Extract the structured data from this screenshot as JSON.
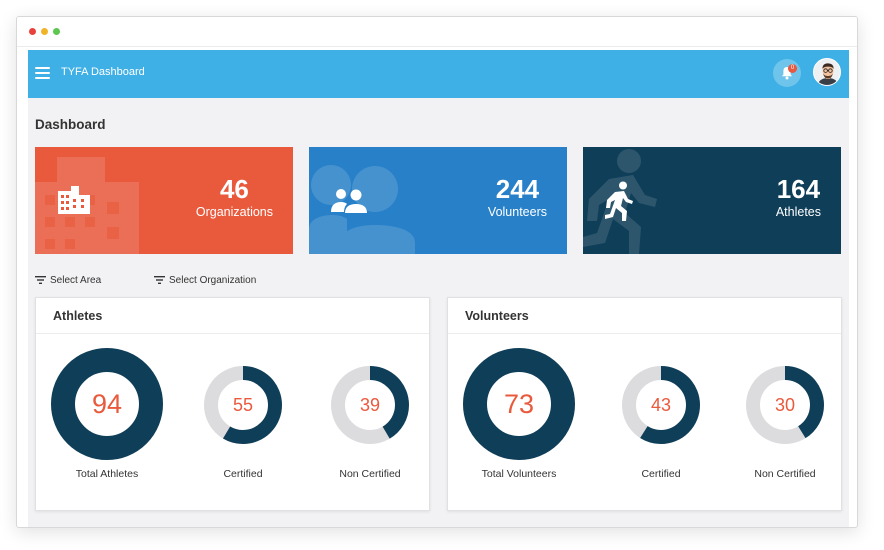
{
  "header": {
    "title": "TYFA Dashboard",
    "notification_count": "0"
  },
  "page": {
    "title": "Dashboard"
  },
  "stats": [
    {
      "value": "46",
      "label": "Organizations",
      "icon": "building-icon",
      "color": "#e95a3d"
    },
    {
      "value": "244",
      "label": "Volunteers",
      "icon": "people-icon",
      "color": "#2780c8"
    },
    {
      "value": "164",
      "label": "Athletes",
      "icon": "running-icon",
      "color": "#0f3e59"
    }
  ],
  "filters": {
    "area": "Select Area",
    "organization": "Select Organization"
  },
  "athletes": {
    "title": "Athletes",
    "total": {
      "value": 94,
      "label": "Total Athletes",
      "fraction": 1.0
    },
    "certified": {
      "value": 55,
      "label": "Certified",
      "fraction": 0.585
    },
    "non_certified": {
      "value": 39,
      "label": "Non Certified",
      "fraction": 0.415
    }
  },
  "volunteers": {
    "title": "Volunteers",
    "total": {
      "value": 73,
      "label": "Total Volunteers",
      "fraction": 1.0
    },
    "certified": {
      "value": 43,
      "label": "Certified",
      "fraction": 0.589
    },
    "non_certified": {
      "value": 30,
      "label": "Non Certified",
      "fraction": 0.411
    }
  },
  "colors": {
    "accent": "#e95a3d",
    "ring_fill": "#0f3e59",
    "ring_track": "#dcdcdf",
    "topbar": "#3fb0e6"
  }
}
